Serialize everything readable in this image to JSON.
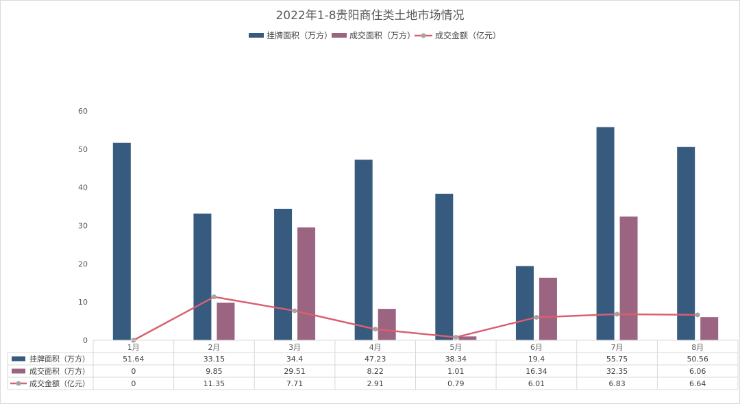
{
  "chart_data": {
    "type": "bar",
    "title": "2022年1-8贵阳商住类土地市场情况",
    "categories": [
      "1月",
      "2月",
      "3月",
      "4月",
      "5月",
      "6月",
      "7月",
      "8月"
    ],
    "series": [
      {
        "name": "挂牌面积（万方）",
        "kind": "bar",
        "color": "#375a7f",
        "values": [
          51.64,
          33.15,
          34.4,
          47.23,
          38.34,
          19.4,
          55.75,
          50.56
        ]
      },
      {
        "name": "成交面积（万方）",
        "kind": "bar",
        "color": "#9b6481",
        "values": [
          0,
          9.85,
          29.51,
          8.22,
          1.01,
          16.34,
          32.35,
          6.06
        ]
      },
      {
        "name": "成交金额（亿元）",
        "kind": "line",
        "color": "#d9606f",
        "marker_color": "#a5a5a5",
        "values": [
          0,
          11.35,
          7.71,
          2.91,
          0.79,
          6.01,
          6.83,
          6.64
        ]
      }
    ],
    "yticks": [
      0,
      10,
      20,
      30,
      40,
      50,
      60
    ],
    "ylim": [
      0,
      60
    ],
    "legend_position": "top",
    "data_table": true,
    "grid": false
  }
}
